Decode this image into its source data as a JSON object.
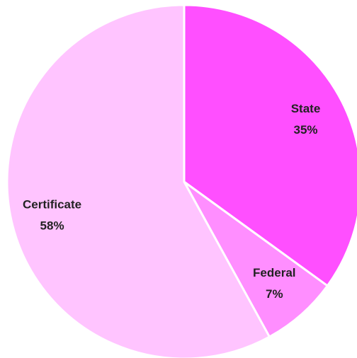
{
  "chart_data": {
    "type": "pie",
    "categories": [
      "State",
      "Federal",
      "Certificate"
    ],
    "values": [
      35,
      7,
      58
    ],
    "value_labels": [
      "35%",
      "7%",
      "58%"
    ],
    "colors": [
      "#ff4fff",
      "#ff8eff",
      "#ffc4ff"
    ]
  }
}
